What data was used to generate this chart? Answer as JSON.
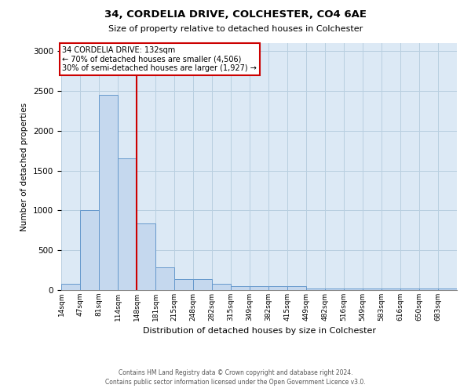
{
  "title1": "34, CORDELIA DRIVE, COLCHESTER, CO4 6AE",
  "title2": "Size of property relative to detached houses in Colchester",
  "xlabel": "Distribution of detached houses by size in Colchester",
  "ylabel": "Number of detached properties",
  "bar_labels": [
    "14sqm",
    "47sqm",
    "81sqm",
    "114sqm",
    "148sqm",
    "181sqm",
    "215sqm",
    "248sqm",
    "282sqm",
    "315sqm",
    "349sqm",
    "382sqm",
    "415sqm",
    "449sqm",
    "482sqm",
    "516sqm",
    "549sqm",
    "583sqm",
    "616sqm",
    "650sqm",
    "683sqm"
  ],
  "bar_values": [
    75,
    1000,
    2450,
    1650,
    840,
    290,
    140,
    140,
    75,
    50,
    50,
    50,
    50,
    15,
    15,
    15,
    15,
    15,
    15,
    15,
    15
  ],
  "bar_color": "#c5d8ee",
  "bar_edge_color": "#6699cc",
  "annotation_text_line1": "34 CORDELIA DRIVE: 132sqm",
  "annotation_text_line2": "← 70% of detached houses are smaller (4,506)",
  "annotation_text_line3": "30% of semi-detached houses are larger (1,927) →",
  "vline_color": "#cc0000",
  "annotation_box_edge": "#cc0000",
  "bg_axes": "#dce9f5",
  "background_color": "#ffffff",
  "grid_color": "#b8cfe0",
  "footer_line1": "Contains HM Land Registry data © Crown copyright and database right 2024.",
  "footer_line2": "Contains public sector information licensed under the Open Government Licence v3.0.",
  "ylim": [
    0,
    3100
  ],
  "bin_width": 33,
  "vline_bin_index": 4
}
